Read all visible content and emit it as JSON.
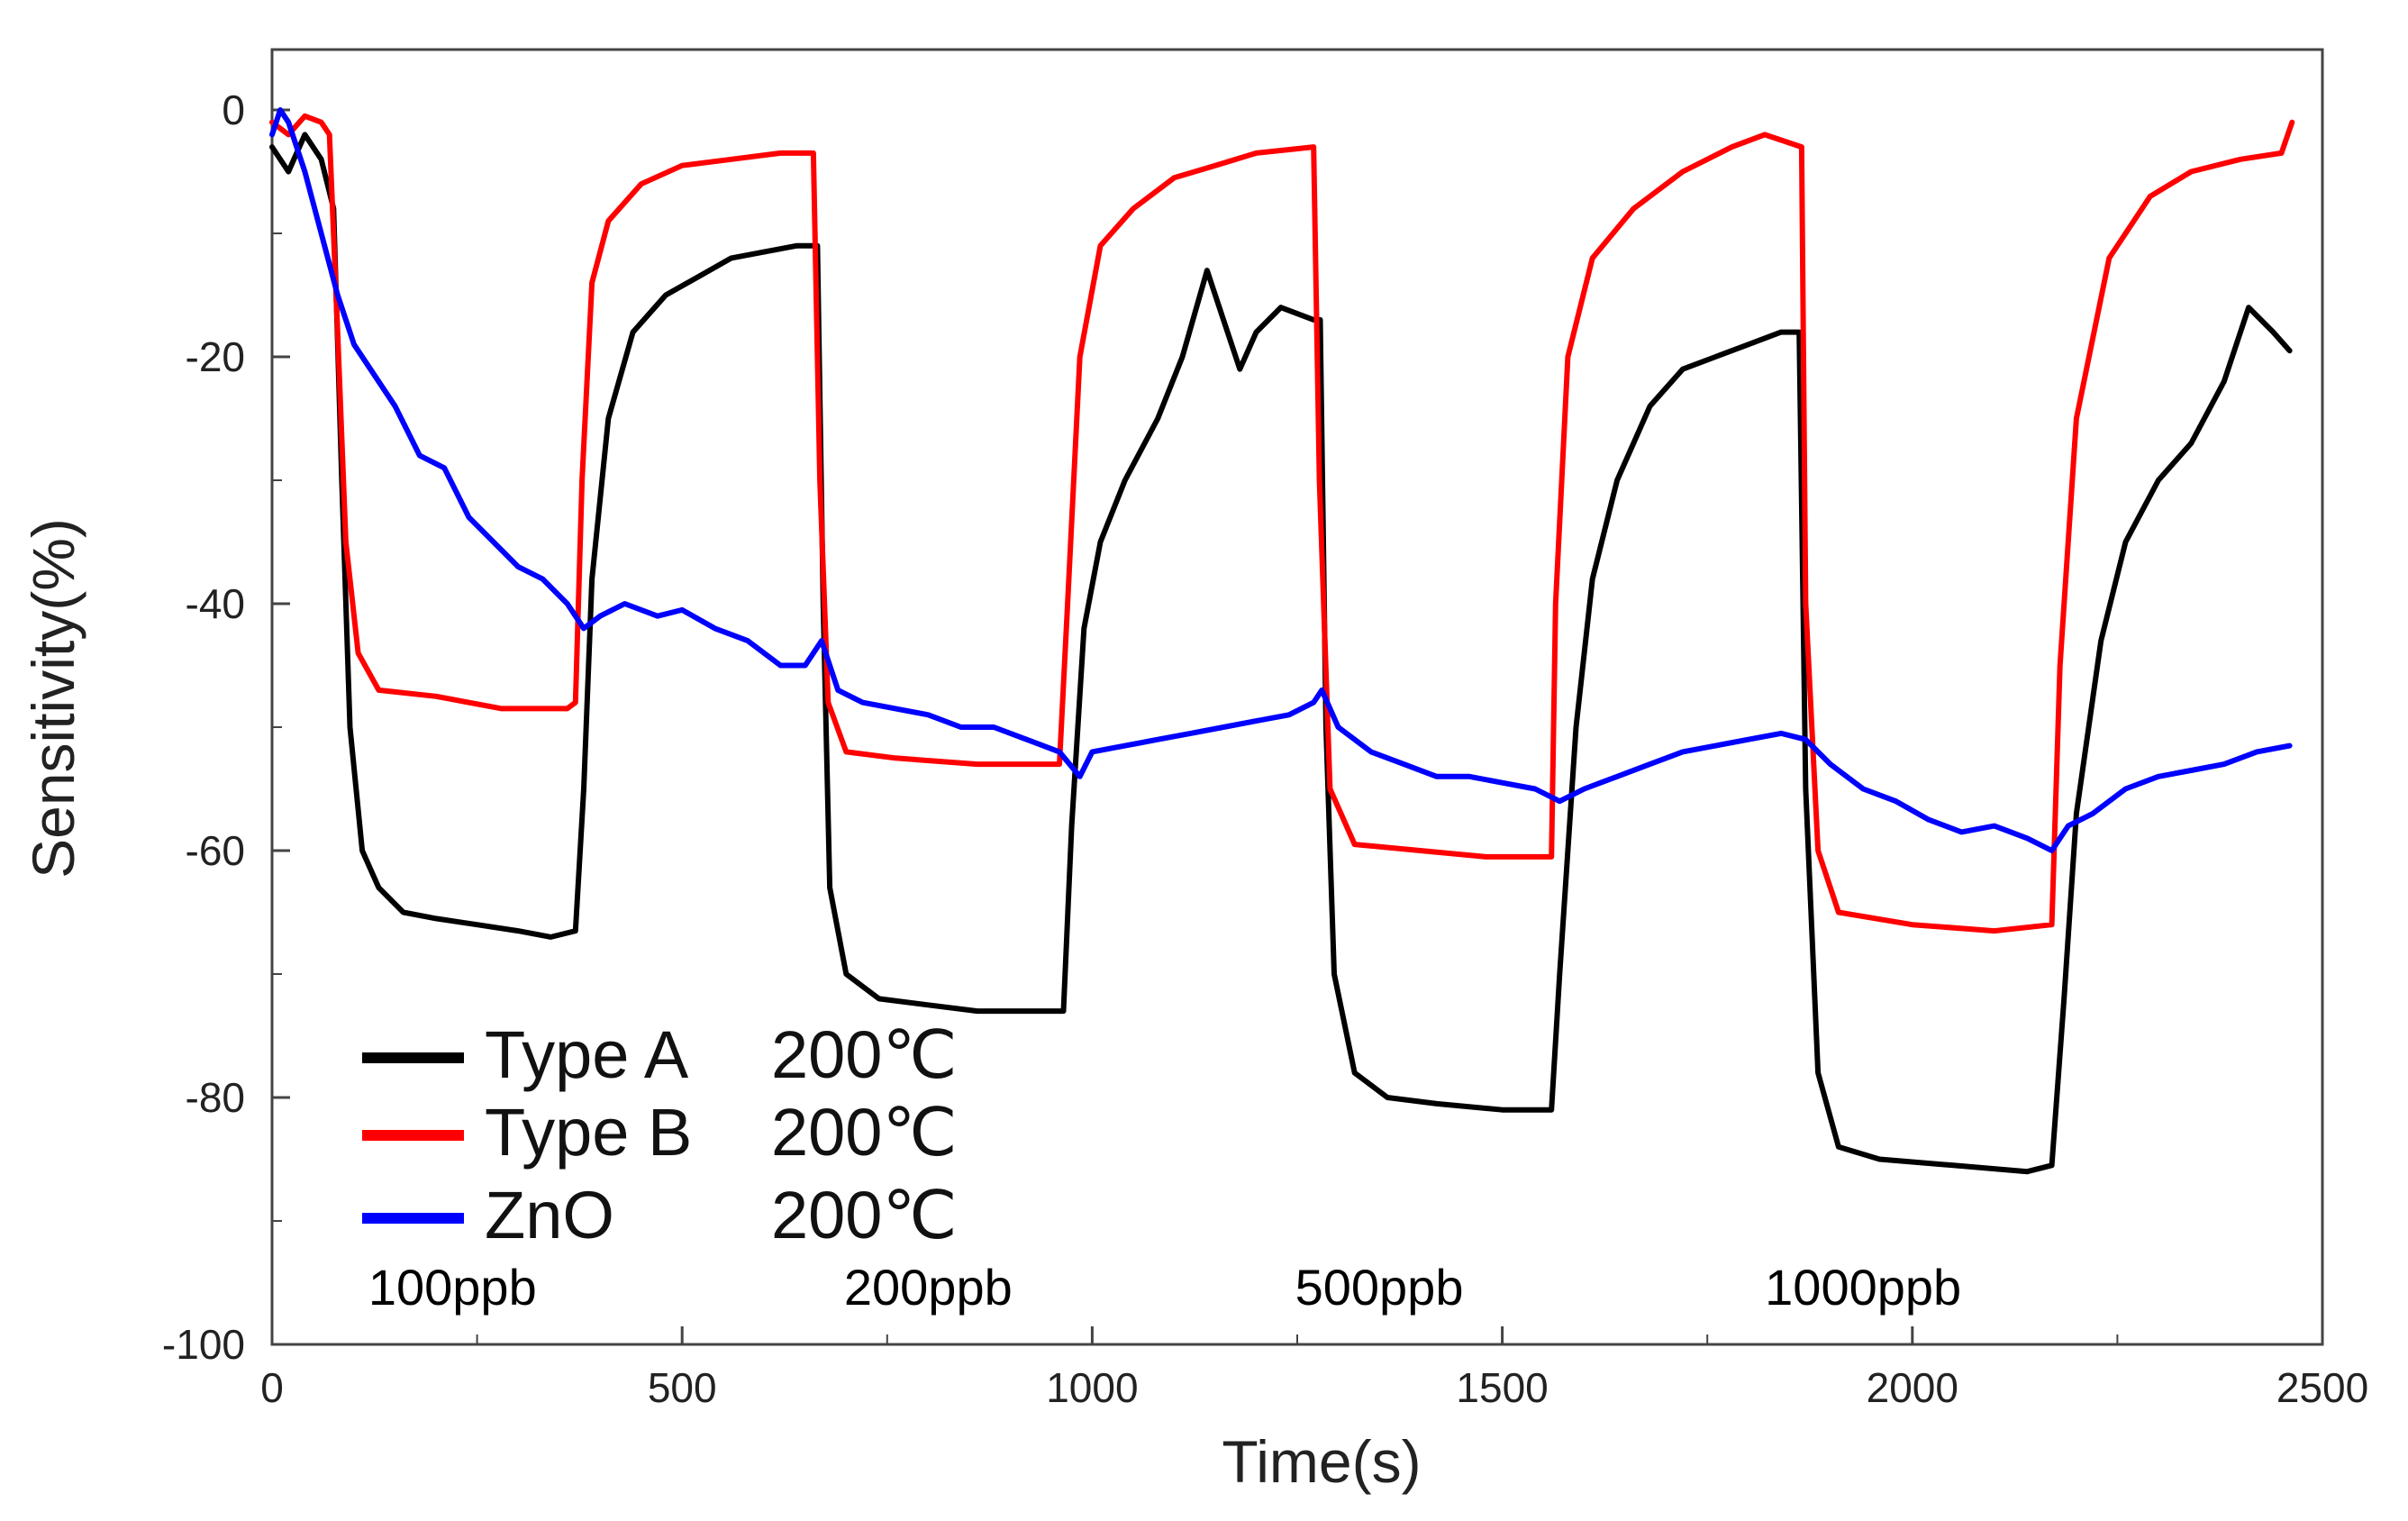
{
  "chart_data": {
    "type": "line",
    "title": "",
    "xlabel": "Time(s)",
    "ylabel": "Sensitivity(%)",
    "xlim": [
      0,
      2500
    ],
    "ylim": [
      -100,
      5
    ],
    "xticks": [
      0,
      500,
      1000,
      1500,
      2000,
      2500
    ],
    "xtick_labels": [
      "0",
      "500",
      "1000",
      "1500",
      "2000",
      "2500"
    ],
    "yticks": [
      0,
      -20,
      -40,
      -60,
      -80,
      -100
    ],
    "ytick_labels": [
      "0",
      "-20",
      "-40",
      "-60",
      "-80",
      "-100"
    ],
    "grid": false,
    "legend_position": "bottom-left",
    "series": [
      {
        "name": "Type A",
        "temperature": "200℃",
        "color": "#000000",
        "points": [
          [
            0,
            -3
          ],
          [
            20,
            -5
          ],
          [
            40,
            -2
          ],
          [
            60,
            -4
          ],
          [
            75,
            -8
          ],
          [
            85,
            -30
          ],
          [
            95,
            -50
          ],
          [
            110,
            -60
          ],
          [
            130,
            -63
          ],
          [
            160,
            -65
          ],
          [
            200,
            -65.5
          ],
          [
            250,
            -66
          ],
          [
            300,
            -66.5
          ],
          [
            340,
            -67
          ],
          [
            370,
            -66.5
          ],
          [
            380,
            -55
          ],
          [
            390,
            -38
          ],
          [
            410,
            -25
          ],
          [
            440,
            -18
          ],
          [
            480,
            -15
          ],
          [
            520,
            -13.5
          ],
          [
            560,
            -12
          ],
          [
            600,
            -11.5
          ],
          [
            640,
            -11
          ],
          [
            665,
            -11
          ],
          [
            672,
            -40
          ],
          [
            680,
            -63
          ],
          [
            700,
            -70
          ],
          [
            740,
            -72
          ],
          [
            800,
            -72.5
          ],
          [
            860,
            -73
          ],
          [
            920,
            -73
          ],
          [
            965,
            -73
          ],
          [
            975,
            -58
          ],
          [
            990,
            -42
          ],
          [
            1010,
            -35
          ],
          [
            1040,
            -30
          ],
          [
            1080,
            -25
          ],
          [
            1110,
            -20
          ],
          [
            1140,
            -13
          ],
          [
            1160,
            -17
          ],
          [
            1180,
            -21
          ],
          [
            1200,
            -18
          ],
          [
            1230,
            -16
          ],
          [
            1270,
            -17
          ],
          [
            1278,
            -17
          ],
          [
            1285,
            -50
          ],
          [
            1295,
            -70
          ],
          [
            1320,
            -78
          ],
          [
            1360,
            -80
          ],
          [
            1420,
            -80.5
          ],
          [
            1500,
            -81
          ],
          [
            1560,
            -81
          ],
          [
            1570,
            -70
          ],
          [
            1590,
            -50
          ],
          [
            1610,
            -38
          ],
          [
            1640,
            -30
          ],
          [
            1680,
            -24
          ],
          [
            1720,
            -21
          ],
          [
            1760,
            -20
          ],
          [
            1800,
            -19
          ],
          [
            1840,
            -18
          ],
          [
            1862,
            -18
          ],
          [
            1870,
            -55
          ],
          [
            1885,
            -78
          ],
          [
            1910,
            -84
          ],
          [
            1960,
            -85
          ],
          [
            2050,
            -85.5
          ],
          [
            2140,
            -86
          ],
          [
            2170,
            -85.5
          ],
          [
            2185,
            -72
          ],
          [
            2200,
            -57
          ],
          [
            2230,
            -43
          ],
          [
            2260,
            -35
          ],
          [
            2300,
            -30
          ],
          [
            2340,
            -27
          ],
          [
            2380,
            -22
          ],
          [
            2410,
            -16
          ],
          [
            2440,
            -18
          ],
          [
            2460,
            -19.5
          ]
        ]
      },
      {
        "name": "Type B",
        "temperature": "200℃",
        "color": "#ff0000",
        "points": [
          [
            0,
            -1
          ],
          [
            20,
            -2
          ],
          [
            40,
            -0.5
          ],
          [
            60,
            -1
          ],
          [
            70,
            -2
          ],
          [
            80,
            -18
          ],
          [
            90,
            -35
          ],
          [
            105,
            -44
          ],
          [
            130,
            -47
          ],
          [
            200,
            -47.5
          ],
          [
            280,
            -48.5
          ],
          [
            360,
            -48.5
          ],
          [
            370,
            -48
          ],
          [
            378,
            -30
          ],
          [
            390,
            -14
          ],
          [
            410,
            -9
          ],
          [
            450,
            -6
          ],
          [
            500,
            -4.5
          ],
          [
            560,
            -4
          ],
          [
            620,
            -3.5
          ],
          [
            660,
            -3.5
          ],
          [
            668,
            -30
          ],
          [
            678,
            -48
          ],
          [
            700,
            -52
          ],
          [
            760,
            -52.5
          ],
          [
            860,
            -53
          ],
          [
            960,
            -53
          ],
          [
            970,
            -40
          ],
          [
            985,
            -20
          ],
          [
            1010,
            -11
          ],
          [
            1050,
            -8
          ],
          [
            1100,
            -5.5
          ],
          [
            1150,
            -4.5
          ],
          [
            1200,
            -3.5
          ],
          [
            1270,
            -3
          ],
          [
            1277,
            -30
          ],
          [
            1290,
            -55
          ],
          [
            1320,
            -59.5
          ],
          [
            1400,
            -60
          ],
          [
            1480,
            -60.5
          ],
          [
            1560,
            -60.5
          ],
          [
            1565,
            -40
          ],
          [
            1580,
            -20
          ],
          [
            1610,
            -12
          ],
          [
            1660,
            -8
          ],
          [
            1720,
            -5
          ],
          [
            1780,
            -3
          ],
          [
            1820,
            -2
          ],
          [
            1865,
            -3
          ],
          [
            1870,
            -40
          ],
          [
            1885,
            -60
          ],
          [
            1910,
            -65
          ],
          [
            2000,
            -66
          ],
          [
            2100,
            -66.5
          ],
          [
            2170,
            -66
          ],
          [
            2180,
            -45
          ],
          [
            2200,
            -25
          ],
          [
            2240,
            -12
          ],
          [
            2290,
            -7
          ],
          [
            2340,
            -5
          ],
          [
            2400,
            -4
          ],
          [
            2450,
            -3.5
          ],
          [
            2463,
            -1
          ]
        ]
      },
      {
        "name": "ZnO",
        "temperature": "200℃",
        "color": "#0000ff",
        "points": [
          [
            0,
            -2
          ],
          [
            10,
            0
          ],
          [
            20,
            -1
          ],
          [
            40,
            -5
          ],
          [
            60,
            -10
          ],
          [
            80,
            -15
          ],
          [
            100,
            -19
          ],
          [
            120,
            -21
          ],
          [
            150,
            -24
          ],
          [
            180,
            -28
          ],
          [
            210,
            -29
          ],
          [
            240,
            -33
          ],
          [
            270,
            -35
          ],
          [
            300,
            -37
          ],
          [
            330,
            -38
          ],
          [
            360,
            -40
          ],
          [
            380,
            -42
          ],
          [
            400,
            -41
          ],
          [
            430,
            -40
          ],
          [
            470,
            -41
          ],
          [
            500,
            -40.5
          ],
          [
            540,
            -42
          ],
          [
            580,
            -43
          ],
          [
            620,
            -45
          ],
          [
            650,
            -45
          ],
          [
            670,
            -43
          ],
          [
            690,
            -47
          ],
          [
            720,
            -48
          ],
          [
            760,
            -48.5
          ],
          [
            800,
            -49
          ],
          [
            840,
            -50
          ],
          [
            880,
            -50
          ],
          [
            920,
            -51
          ],
          [
            960,
            -52
          ],
          [
            985,
            -54
          ],
          [
            1000,
            -52
          ],
          [
            1040,
            -51.5
          ],
          [
            1080,
            -51
          ],
          [
            1120,
            -50.5
          ],
          [
            1160,
            -50
          ],
          [
            1200,
            -49.5
          ],
          [
            1240,
            -49
          ],
          [
            1270,
            -48
          ],
          [
            1280,
            -47
          ],
          [
            1300,
            -50
          ],
          [
            1340,
            -52
          ],
          [
            1380,
            -53
          ],
          [
            1420,
            -54
          ],
          [
            1460,
            -54
          ],
          [
            1500,
            -54.5
          ],
          [
            1540,
            -55
          ],
          [
            1570,
            -56
          ],
          [
            1600,
            -55
          ],
          [
            1640,
            -54
          ],
          [
            1680,
            -53
          ],
          [
            1720,
            -52
          ],
          [
            1760,
            -51.5
          ],
          [
            1800,
            -51
          ],
          [
            1840,
            -50.5
          ],
          [
            1870,
            -51
          ],
          [
            1900,
            -53
          ],
          [
            1940,
            -55
          ],
          [
            1980,
            -56
          ],
          [
            2020,
            -57.5
          ],
          [
            2060,
            -58.5
          ],
          [
            2100,
            -58
          ],
          [
            2140,
            -59
          ],
          [
            2170,
            -60
          ],
          [
            2190,
            -58
          ],
          [
            2220,
            -57
          ],
          [
            2260,
            -55
          ],
          [
            2300,
            -54
          ],
          [
            2340,
            -53.5
          ],
          [
            2380,
            -53
          ],
          [
            2420,
            -52
          ],
          [
            2460,
            -51.5
          ]
        ]
      }
    ],
    "annotations": [
      {
        "text": "100ppb",
        "x": 220
      },
      {
        "text": "200ppb",
        "x": 800
      },
      {
        "text": "500ppb",
        "x": 1350
      },
      {
        "text": "1000ppb",
        "x": 1940
      }
    ]
  }
}
